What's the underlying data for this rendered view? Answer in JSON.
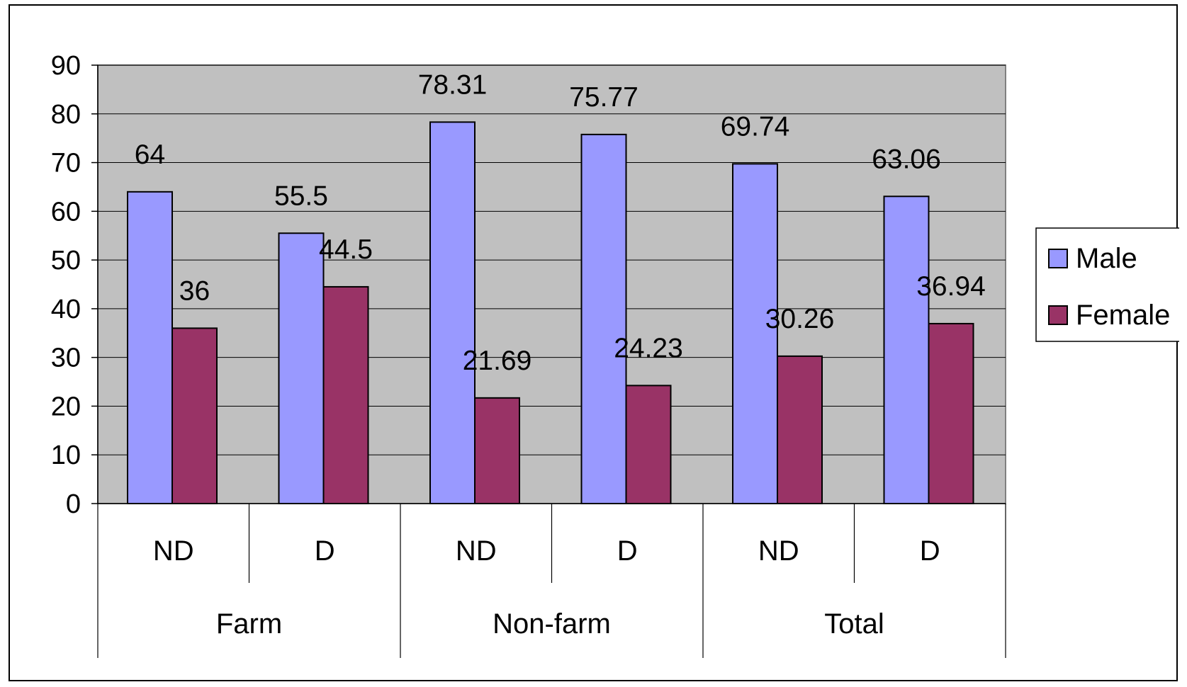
{
  "chart_data": {
    "type": "bar",
    "title": "",
    "xlabel": "",
    "ylabel": "",
    "ylim": [
      0,
      90
    ],
    "yticks": [
      0,
      10,
      20,
      30,
      40,
      50,
      60,
      70,
      80,
      90
    ],
    "grid": true,
    "legend_position": "right",
    "plot_background": "#c0c0c0",
    "groups": [
      {
        "label": "Farm",
        "categories": [
          "ND",
          "D"
        ]
      },
      {
        "label": "Non-farm",
        "categories": [
          "ND",
          "D"
        ]
      },
      {
        "label": "Total",
        "categories": [
          "ND",
          "D"
        ]
      }
    ],
    "series": [
      {
        "name": "Male",
        "color": "#9999ff",
        "values": [
          64,
          55.5,
          78.31,
          75.77,
          69.74,
          63.06
        ],
        "labels": [
          "64",
          "55.5",
          "78.31",
          "75.77",
          "69.74",
          "63.06"
        ]
      },
      {
        "name": "Female",
        "color": "#993366",
        "values": [
          36,
          44.5,
          21.69,
          24.23,
          30.26,
          36.94
        ],
        "labels": [
          "36",
          "44.5",
          "21.69",
          "24.23",
          "30.26",
          "36.94"
        ]
      }
    ]
  }
}
